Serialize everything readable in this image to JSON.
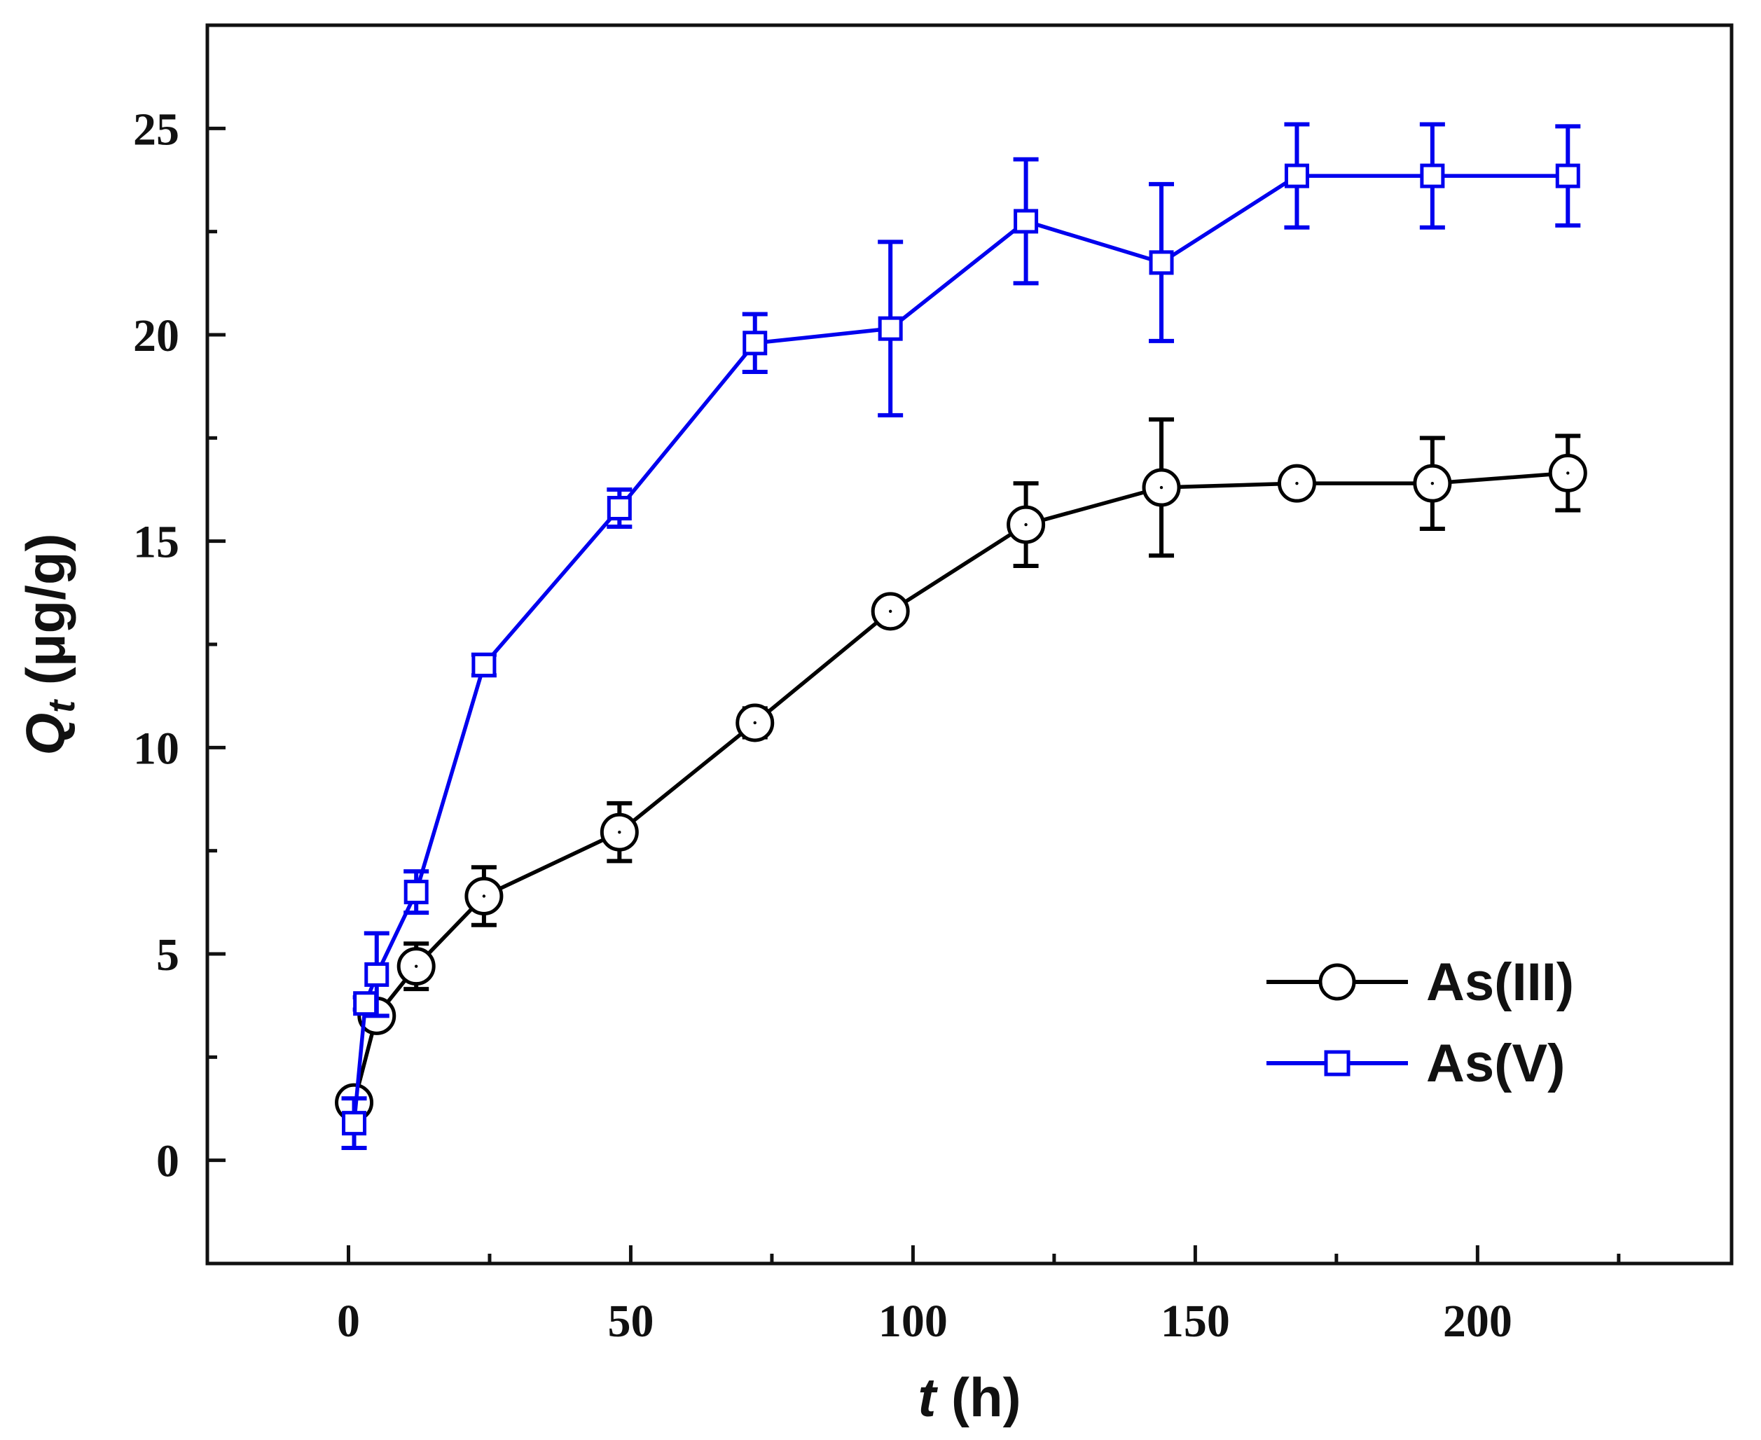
{
  "chart_data": {
    "type": "line",
    "title": "",
    "xlabel": {
      "italic": "t",
      "rest": " (h)"
    },
    "ylabel": {
      "italic": "Q",
      "subscript": "t",
      "rest": " (μg/g)"
    },
    "xlim": [
      -25,
      245
    ],
    "ylim": [
      -2.5,
      27.5
    ],
    "xticks": [
      0,
      50,
      100,
      150,
      200
    ],
    "xtick_labels": [
      "0",
      "50",
      "100",
      "150",
      "200"
    ],
    "xminor": [
      25,
      75,
      125,
      175,
      225
    ],
    "yticks": [
      0,
      5,
      10,
      15,
      20,
      25
    ],
    "ytick_labels": [
      "0",
      "5",
      "10",
      "15",
      "20",
      "25"
    ],
    "yminor": [
      2.5,
      7.5,
      12.5,
      17.5,
      22.5
    ],
    "grid": false,
    "legend_position": "lower-right",
    "series": [
      {
        "name": "As(III)",
        "color": "#000000",
        "marker": "circle",
        "x": [
          1,
          5,
          12,
          24,
          48,
          72,
          96,
          120,
          144,
          168,
          192,
          216
        ],
        "y": [
          1.4,
          3.5,
          4.7,
          6.4,
          7.95,
          10.6,
          13.3,
          15.4,
          16.3,
          16.4,
          16.4,
          16.65
        ],
        "err": [
          0.25,
          0.25,
          0.55,
          0.7,
          0.7,
          0.35,
          0.3,
          1.0,
          1.65,
          0.3,
          1.1,
          0.9
        ]
      },
      {
        "name": "As(V)",
        "color": "#0000ee",
        "marker": "square",
        "x": [
          1,
          3,
          5,
          12,
          24,
          48,
          72,
          96,
          120,
          144,
          168,
          192,
          216
        ],
        "y": [
          0.9,
          3.8,
          4.5,
          6.5,
          12.0,
          15.8,
          19.8,
          20.15,
          22.75,
          21.75,
          23.85,
          23.85,
          23.85
        ],
        "err": [
          0.6,
          0.15,
          1.0,
          0.5,
          0.25,
          0.45,
          0.7,
          2.1,
          1.5,
          1.9,
          1.25,
          1.25,
          1.2
        ]
      }
    ]
  }
}
